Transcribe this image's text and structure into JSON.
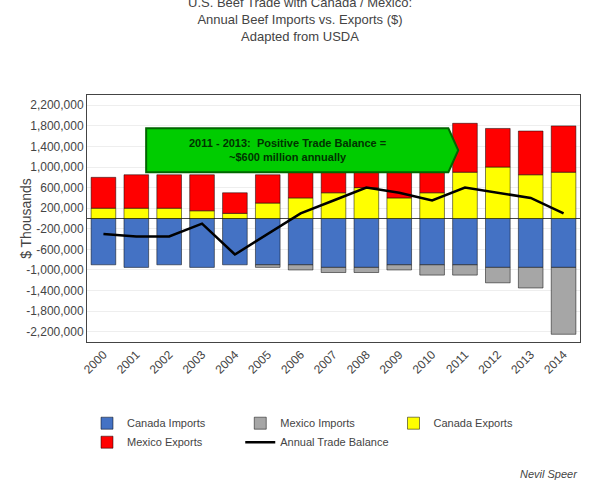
{
  "chart_data": {
    "type": "bar",
    "stacked": true,
    "title": "U.S. Beef Trade with Canada / Mexico:\nAnnual Beef Imports vs. Exports ($)\nAdapted from USDA",
    "ylabel": "$ Thousands",
    "categories": [
      "2000",
      "2001",
      "2002",
      "2003",
      "2004",
      "2005",
      "2006",
      "2007",
      "2008",
      "2009",
      "2010",
      "2011",
      "2012",
      "2013",
      "2014"
    ],
    "series": [
      {
        "name": "Canada Imports",
        "type": "bar",
        "color": "#4472C4",
        "values": [
          -900000,
          -950000,
          -900000,
          -950000,
          -900000,
          -900000,
          -900000,
          -950000,
          -950000,
          -900000,
          -900000,
          -900000,
          -950000,
          -950000,
          -950000
        ]
      },
      {
        "name": "Mexico Imports",
        "type": "bar",
        "color": "#A6A6A6",
        "values": [
          0,
          0,
          0,
          0,
          0,
          -50000,
          -100000,
          -100000,
          -100000,
          -100000,
          -200000,
          -200000,
          -300000,
          -400000,
          -1300000
        ]
      },
      {
        "name": "Canada Exports",
        "type": "bar",
        "color": "#FFFF00",
        "values": [
          200000,
          200000,
          200000,
          150000,
          100000,
          300000,
          400000,
          500000,
          600000,
          400000,
          500000,
          900000,
          1000000,
          850000,
          900000
        ]
      },
      {
        "name": "Mexico Exports",
        "type": "bar",
        "color": "#FF0000",
        "values": [
          600000,
          650000,
          650000,
          700000,
          400000,
          550000,
          600000,
          700000,
          900000,
          900000,
          900000,
          950000,
          750000,
          850000,
          900000
        ]
      },
      {
        "name": "Annual Trade Balance",
        "type": "line",
        "color": "#000000",
        "values": [
          -300000,
          -350000,
          -350000,
          -100000,
          -700000,
          -300000,
          100000,
          350000,
          600000,
          500000,
          350000,
          600000,
          500000,
          400000,
          100000
        ]
      }
    ],
    "ylim": [
      -2400000,
      2400000
    ],
    "yticks": [
      {
        "value": -2200000,
        "label": "-2,200,000"
      },
      {
        "value": -1800000,
        "label": "-1,800,000"
      },
      {
        "value": -1400000,
        "label": "-1,400,000"
      },
      {
        "value": -1000000,
        "label": "-1,000,000"
      },
      {
        "value": -600000,
        "label": "-600,000"
      },
      {
        "value": -200000,
        "label": "-200,000"
      },
      {
        "value": 200000,
        "label": "200,000"
      },
      {
        "value": 600000,
        "label": "600,000"
      },
      {
        "value": 1000000,
        "label": "1,000,000"
      },
      {
        "value": 1400000,
        "label": "1,400,000"
      },
      {
        "value": 1800000,
        "label": "1,800,000"
      },
      {
        "value": 2200000,
        "label": "2,200,000"
      }
    ],
    "grid": true,
    "legend": "bottom",
    "annotations": [
      "2011 - 2013:  Positive Trade Balance =\n~$600 million annually",
      "Nevil Speer"
    ]
  }
}
